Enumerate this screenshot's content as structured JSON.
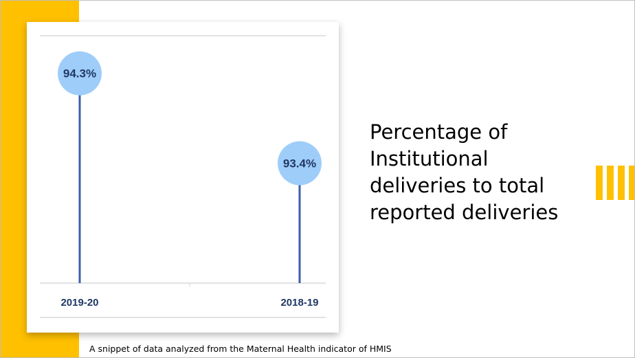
{
  "slide": {
    "title": "Percentage of Institutional deliveries to total reported deliveries",
    "caption": "A snippet of data analyzed from the Maternal Health indicator of HMIS"
  },
  "colors": {
    "accent": "#ffc000",
    "lollipop_head": "#9fcdfa",
    "stem": "#3b5ea8",
    "label_text": "#1f3864",
    "grid": "#d9d9d9"
  },
  "chart_data": {
    "type": "bar",
    "style": "lollipop",
    "categories": [
      "2019-20",
      "2018-19"
    ],
    "values": [
      94.3,
      93.4
    ],
    "data_labels": [
      "94.3%",
      "93.4%"
    ],
    "title": "",
    "xlabel": "",
    "ylabel": "",
    "ylim": [
      92.2,
      94.8
    ],
    "grid": false,
    "legend": "none"
  }
}
